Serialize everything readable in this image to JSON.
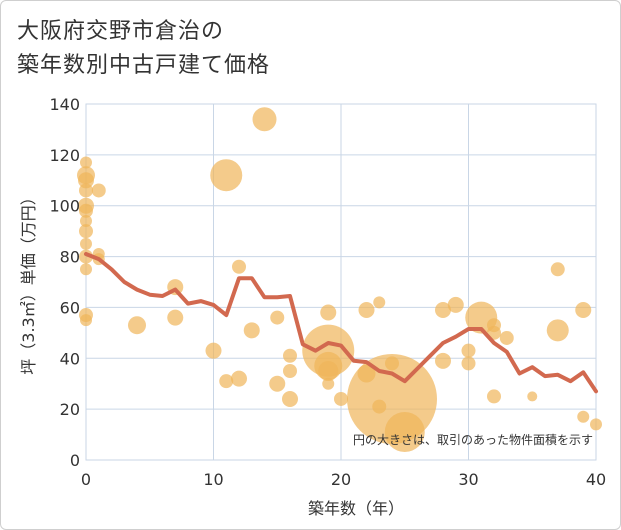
{
  "title_line1": "大阪府交野市倉治の",
  "title_line2": "築年数別中古戸建て価格",
  "colors": {
    "bubble": "#f0b55a",
    "line": "#d2694f",
    "grid": "#c9d6e6",
    "bg": "#ffffff"
  },
  "chart_data": {
    "type": "scatter",
    "title": "大阪府交野市倉治の築年数別中古戸建て価格",
    "xlabel": "築年数（年）",
    "ylabel": "坪（3.3㎡）単価（万円）",
    "xlim": [
      0,
      40
    ],
    "ylim": [
      0,
      140
    ],
    "x_ticks": [
      0,
      10,
      20,
      30,
      40
    ],
    "y_ticks": [
      0,
      20,
      40,
      60,
      80,
      100,
      120,
      140
    ],
    "grid": true,
    "note": "円の大きさは、取引のあった物件面積を示す",
    "bubbles": [
      {
        "x": 0,
        "y": 117,
        "s": 6
      },
      {
        "x": 0,
        "y": 112,
        "s": 9
      },
      {
        "x": 0,
        "y": 110,
        "s": 8
      },
      {
        "x": 0,
        "y": 106,
        "s": 7
      },
      {
        "x": 0,
        "y": 100,
        "s": 8
      },
      {
        "x": 0,
        "y": 98,
        "s": 7
      },
      {
        "x": 0,
        "y": 94,
        "s": 6
      },
      {
        "x": 0,
        "y": 90,
        "s": 7
      },
      {
        "x": 0,
        "y": 85,
        "s": 6
      },
      {
        "x": 0,
        "y": 80,
        "s": 7
      },
      {
        "x": 0,
        "y": 75,
        "s": 6
      },
      {
        "x": 0,
        "y": 57,
        "s": 7
      },
      {
        "x": 0,
        "y": 55,
        "s": 6
      },
      {
        "x": 1,
        "y": 106,
        "s": 7
      },
      {
        "x": 1,
        "y": 81,
        "s": 6
      },
      {
        "x": 1,
        "y": 79,
        "s": 6
      },
      {
        "x": 4,
        "y": 53,
        "s": 9
      },
      {
        "x": 7,
        "y": 68,
        "s": 8
      },
      {
        "x": 7,
        "y": 56,
        "s": 8
      },
      {
        "x": 10,
        "y": 43,
        "s": 8
      },
      {
        "x": 11,
        "y": 112,
        "s": 16
      },
      {
        "x": 11,
        "y": 31,
        "s": 7
      },
      {
        "x": 12,
        "y": 76,
        "s": 7
      },
      {
        "x": 12,
        "y": 32,
        "s": 8
      },
      {
        "x": 13,
        "y": 51,
        "s": 8
      },
      {
        "x": 14,
        "y": 134,
        "s": 12
      },
      {
        "x": 15,
        "y": 56,
        "s": 7
      },
      {
        "x": 15,
        "y": 30,
        "s": 8
      },
      {
        "x": 16,
        "y": 41,
        "s": 7
      },
      {
        "x": 16,
        "y": 35,
        "s": 7
      },
      {
        "x": 16,
        "y": 24,
        "s": 8
      },
      {
        "x": 19,
        "y": 58,
        "s": 8
      },
      {
        "x": 19,
        "y": 43,
        "s": 26
      },
      {
        "x": 19,
        "y": 37,
        "s": 14
      },
      {
        "x": 19,
        "y": 35,
        "s": 10
      },
      {
        "x": 19,
        "y": 30,
        "s": 6
      },
      {
        "x": 20,
        "y": 24,
        "s": 7
      },
      {
        "x": 22,
        "y": 59,
        "s": 8
      },
      {
        "x": 22,
        "y": 34,
        "s": 9
      },
      {
        "x": 23,
        "y": 62,
        "s": 6
      },
      {
        "x": 23,
        "y": 21,
        "s": 7
      },
      {
        "x": 24,
        "y": 24,
        "s": 45
      },
      {
        "x": 24,
        "y": 38,
        "s": 7
      },
      {
        "x": 25,
        "y": 11,
        "s": 20
      },
      {
        "x": 28,
        "y": 59,
        "s": 8
      },
      {
        "x": 28,
        "y": 39,
        "s": 8
      },
      {
        "x": 29,
        "y": 61,
        "s": 8
      },
      {
        "x": 30,
        "y": 43,
        "s": 7
      },
      {
        "x": 30,
        "y": 38,
        "s": 7
      },
      {
        "x": 31,
        "y": 56,
        "s": 16
      },
      {
        "x": 32,
        "y": 53,
        "s": 7
      },
      {
        "x": 32,
        "y": 50,
        "s": 7
      },
      {
        "x": 32,
        "y": 25,
        "s": 7
      },
      {
        "x": 33,
        "y": 48,
        "s": 7
      },
      {
        "x": 35,
        "y": 25,
        "s": 5
      },
      {
        "x": 37,
        "y": 75,
        "s": 7
      },
      {
        "x": 37,
        "y": 51,
        "s": 11
      },
      {
        "x": 39,
        "y": 59,
        "s": 8
      },
      {
        "x": 39,
        "y": 17,
        "s": 6
      },
      {
        "x": 40,
        "y": 14,
        "s": 6
      }
    ],
    "series": [
      {
        "x": [
          0,
          1,
          2,
          3,
          4,
          5,
          6,
          7,
          8,
          9,
          10,
          11,
          12,
          13,
          14,
          15,
          16,
          17,
          18,
          19,
          20,
          21,
          22,
          23,
          24,
          25,
          26,
          27,
          28,
          29,
          30,
          31,
          32,
          33,
          34,
          35,
          36,
          37,
          38,
          39,
          40
        ],
        "values": [
          81,
          79,
          75,
          70,
          67,
          65,
          64.5,
          67,
          61.5,
          62.5,
          61,
          57,
          71.5,
          71.5,
          64,
          64,
          64.5,
          45.5,
          43,
          46,
          45,
          39,
          38.5,
          35,
          34,
          31,
          36,
          41,
          46,
          48.5,
          51.5,
          51.5,
          46,
          42.5,
          34,
          36.5,
          33,
          33.5,
          31,
          34.5,
          27
        ]
      }
    ]
  }
}
